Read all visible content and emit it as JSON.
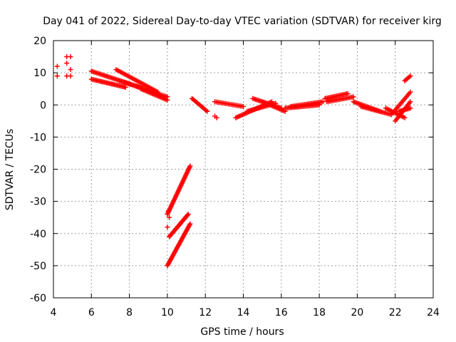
{
  "chart_data": {
    "type": "scatter",
    "title": "Day 041 of 2022, Sidereal Day-to-day VTEC variation (SDTVAR) for receiver kirg",
    "xlabel": "GPS time / hours",
    "ylabel": "SDTVAR / TECUs",
    "xlim": [
      4,
      24
    ],
    "ylim": [
      -60,
      20
    ],
    "xticks": [
      4,
      6,
      8,
      10,
      12,
      14,
      16,
      18,
      20,
      22,
      24
    ],
    "yticks": [
      -60,
      -50,
      -40,
      -30,
      -20,
      -10,
      0,
      10,
      20
    ],
    "grid": true,
    "marker": "plus",
    "color": "#ff0000",
    "series": [
      {
        "name": "early-points",
        "points": [
          [
            4.2,
            12
          ],
          [
            4.2,
            9
          ],
          [
            4.7,
            15
          ],
          [
            4.7,
            13
          ],
          [
            4.7,
            9
          ],
          [
            4.9,
            15
          ],
          [
            4.9,
            11
          ],
          [
            4.9,
            9
          ]
        ]
      },
      {
        "name": "arc-morning-a",
        "x0": 6.0,
        "x1": 8.8,
        "y0": 10.5,
        "y1": 5.0,
        "n": 40
      },
      {
        "name": "arc-morning-b",
        "x0": 6.0,
        "x1": 7.8,
        "y0": 8.0,
        "y1": 5.5,
        "n": 28
      },
      {
        "name": "arc-morning-c",
        "x0": 7.3,
        "x1": 9.5,
        "y0": 11.0,
        "y1": 4.0,
        "n": 32
      },
      {
        "name": "arc-morning-d",
        "x0": 7.5,
        "x1": 10.0,
        "y0": 7.5,
        "y1": 2.5,
        "n": 32
      },
      {
        "name": "arc-morning-e",
        "x0": 8.6,
        "x1": 10.0,
        "y0": 5.0,
        "y1": 1.5,
        "n": 20
      },
      {
        "name": "drop-upper",
        "x0": 10.0,
        "x1": 11.2,
        "y0": -34.0,
        "y1": -19.0,
        "n": 40
      },
      {
        "name": "drop-middle",
        "x0": 10.1,
        "x1": 11.1,
        "y0": -41.0,
        "y1": -34.0,
        "n": 26
      },
      {
        "name": "drop-lower",
        "x0": 10.0,
        "x1": 11.2,
        "y0": -50.0,
        "y1": -37.0,
        "n": 36
      },
      {
        "name": "drop-points",
        "points": [
          [
            10.0,
            -38
          ],
          [
            10.05,
            -33
          ],
          [
            10.1,
            -35
          ]
        ]
      },
      {
        "name": "arc-noon",
        "x0": 11.3,
        "x1": 12.1,
        "y0": 2.0,
        "y1": -2.0,
        "n": 14
      },
      {
        "name": "noon-points",
        "points": [
          [
            12.5,
            -3.5
          ],
          [
            12.6,
            -4
          ]
        ]
      },
      {
        "name": "arc-afternoon-a",
        "x0": 12.5,
        "x1": 14.0,
        "y0": 1.0,
        "y1": -0.5,
        "n": 20
      },
      {
        "name": "arc-afternoon-b",
        "x0": 13.6,
        "x1": 15.5,
        "y0": -4.0,
        "y1": 1.0,
        "n": 28
      },
      {
        "name": "arc-afternoon-c",
        "x0": 14.5,
        "x1": 16.0,
        "y0": 2.0,
        "y1": -1.0,
        "n": 22
      },
      {
        "name": "arc-afternoon-d",
        "x0": 14.2,
        "x1": 15.7,
        "y0": -2.0,
        "y1": 0.5,
        "n": 22
      },
      {
        "name": "arc-afternoon-e",
        "x0": 15.0,
        "x1": 16.2,
        "y0": 1.0,
        "y1": -2.0,
        "n": 18
      },
      {
        "name": "arc-evening-a",
        "x0": 16.2,
        "x1": 18.0,
        "y0": -1.0,
        "y1": 0.0,
        "n": 26
      },
      {
        "name": "arc-evening-b",
        "x0": 16.5,
        "x1": 18.2,
        "y0": -0.5,
        "y1": 1.0,
        "n": 24
      },
      {
        "name": "arc-evening-c",
        "x0": 18.3,
        "x1": 19.5,
        "y0": 2.0,
        "y1": 3.5,
        "n": 18
      },
      {
        "name": "arc-evening-d",
        "x0": 18.4,
        "x1": 19.8,
        "y0": 1.0,
        "y1": 2.5,
        "n": 20
      },
      {
        "name": "arc-night-a",
        "x0": 19.8,
        "x1": 21.2,
        "y0": 1.0,
        "y1": -2.0,
        "n": 20
      },
      {
        "name": "arc-night-b",
        "x0": 20.2,
        "x1": 21.8,
        "y0": -0.5,
        "y1": -3.0,
        "n": 22
      },
      {
        "name": "arc-late-a",
        "x0": 21.5,
        "x1": 22.5,
        "y0": -1.0,
        "y1": -4.0,
        "n": 14
      },
      {
        "name": "arc-late-b",
        "x0": 21.8,
        "x1": 22.8,
        "y0": -3.0,
        "y1": 4.0,
        "n": 16
      },
      {
        "name": "arc-late-c",
        "x0": 22.0,
        "x1": 22.8,
        "y0": -5.0,
        "y1": 1.0,
        "n": 14
      },
      {
        "name": "arc-late-d",
        "x0": 22.2,
        "x1": 22.8,
        "y0": -2.0,
        "y1": -1.0,
        "n": 10
      },
      {
        "name": "arc-late-e",
        "x0": 22.5,
        "x1": 22.8,
        "y0": 7.5,
        "y1": 9.0,
        "n": 6
      }
    ]
  }
}
